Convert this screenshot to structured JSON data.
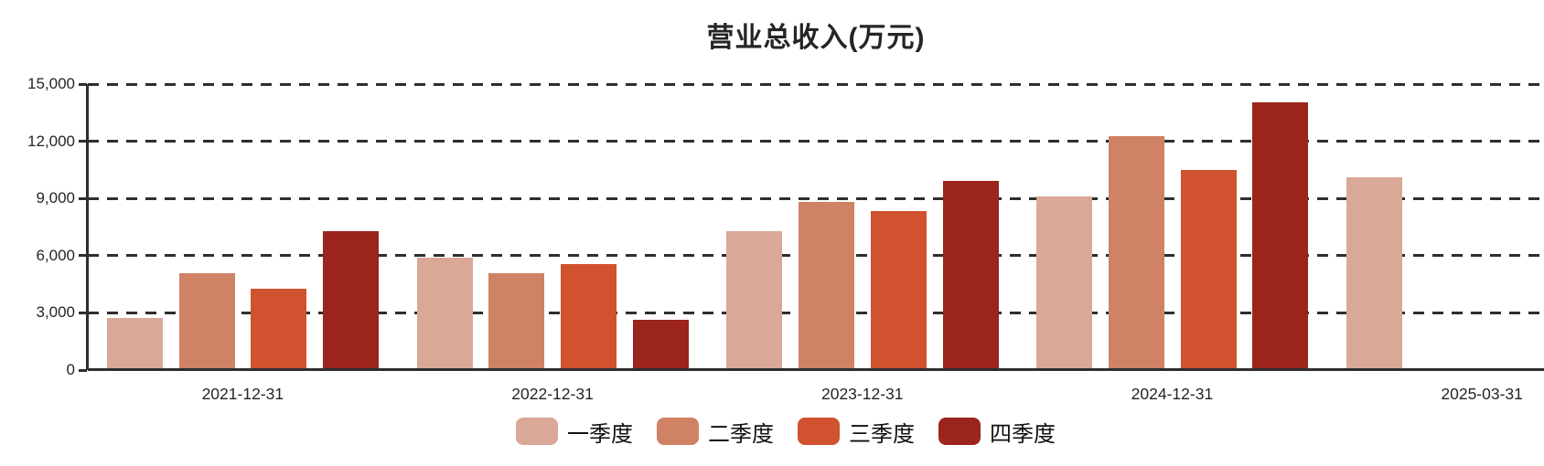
{
  "chart_data": {
    "type": "bar",
    "title": "营业总收入(万元)",
    "categories": [
      "2021-12-31",
      "2022-12-31",
      "2023-12-31",
      "2024-12-31",
      "2025-03-31"
    ],
    "series": [
      {
        "name": "一季度",
        "color": "#D9A897",
        "values": [
          2750,
          5900,
          7300,
          9100,
          10100
        ]
      },
      {
        "name": "二季度",
        "color": "#D08265",
        "values": [
          5100,
          5100,
          8800,
          12250,
          null
        ]
      },
      {
        "name": "三季度",
        "color": "#D0522E",
        "values": [
          4250,
          5550,
          8350,
          10500,
          null
        ]
      },
      {
        "name": "四季度",
        "color": "#9B241C",
        "values": [
          7300,
          2650,
          9900,
          14050,
          null
        ]
      }
    ],
    "ylim": [
      0,
      15000
    ],
    "ytick_interval": 3000,
    "ytick_labels": [
      "0",
      "3,000",
      "6,000",
      "9,000",
      "12,000",
      "15,000"
    ],
    "grid": "horizontal-dashed",
    "grid_color": "#2e2e2e",
    "axis_color": "#2e2e2e",
    "text_color": "#252525",
    "legend_position": "bottom-center"
  }
}
